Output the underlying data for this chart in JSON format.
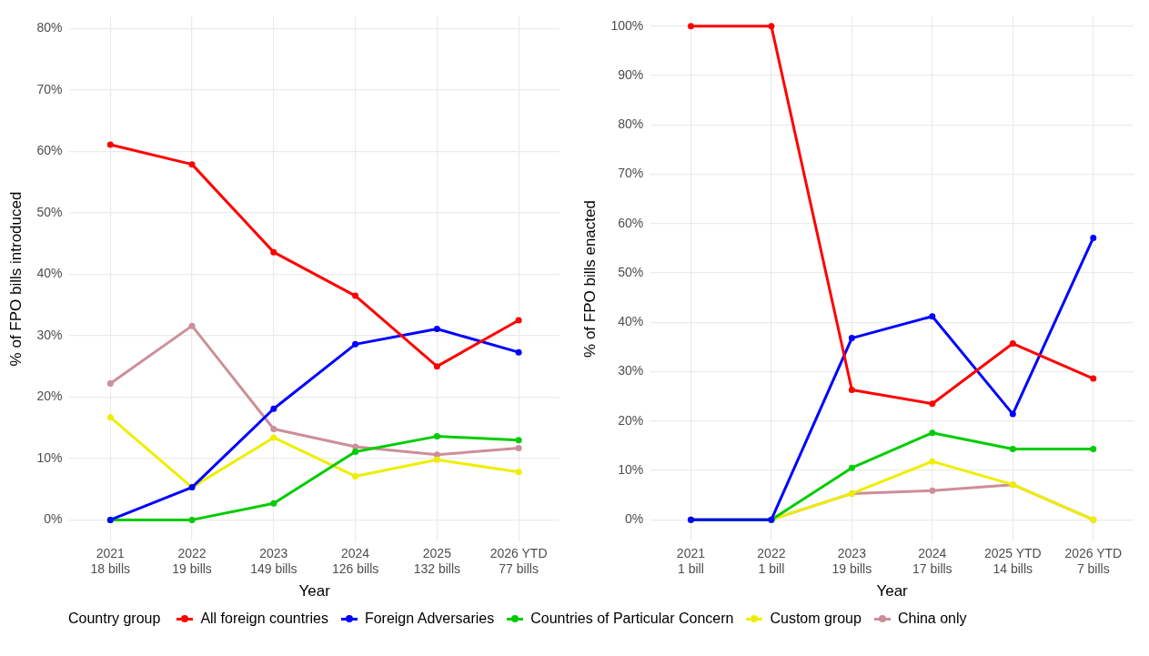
{
  "chart_data": [
    {
      "type": "line",
      "xlabel": "Year",
      "ylabel": "% of FPO bills introduced",
      "legend": "bottom",
      "legend_title": "Country group",
      "grid": true,
      "marker": "circle",
      "categories": [
        "2021\n18 bills",
        "2022\n19 bills",
        "2023\n149 bills",
        "2024\n126 bills",
        "2025\n132 bills",
        "2026 YTD\n77 bills"
      ],
      "ylim": [
        -3.5,
        82
      ],
      "yticks": [
        {
          "value": 0,
          "label": "0%"
        },
        {
          "value": 10,
          "label": "10%"
        },
        {
          "value": 20,
          "label": "20%"
        },
        {
          "value": 30,
          "label": "30%"
        },
        {
          "value": 40,
          "label": "40%"
        },
        {
          "value": 50,
          "label": "50%"
        },
        {
          "value": 60,
          "label": "60%"
        },
        {
          "value": 70,
          "label": "70%"
        },
        {
          "value": 80,
          "label": "80%"
        }
      ],
      "series": [
        {
          "name": "All foreign countries",
          "color": "#ff0000",
          "values": [
            61.1,
            57.9,
            43.6,
            36.5,
            25.0,
            32.5
          ]
        },
        {
          "name": "Foreign Adversaries",
          "color": "#0000ff",
          "values": [
            0,
            5.3,
            18.1,
            28.6,
            31.1,
            27.3
          ]
        },
        {
          "name": "Countries of Particular Concern",
          "color": "#00cc00",
          "values": [
            0,
            0,
            2.7,
            11.1,
            13.6,
            13.0
          ]
        },
        {
          "name": "Custom group",
          "color": "#eeee00",
          "values": [
            16.7,
            5.3,
            13.4,
            7.1,
            9.8,
            7.8
          ]
        },
        {
          "name": "China only",
          "color": "#cc8f99",
          "values": [
            22.2,
            31.6,
            14.8,
            11.9,
            10.6,
            11.7
          ]
        }
      ]
    },
    {
      "type": "line",
      "xlabel": "Year",
      "ylabel": "% of FPO bills enacted",
      "grid": true,
      "marker": "circle",
      "categories": [
        "2021\n1 bill",
        "2022\n1 bill",
        "2023\n19 bills",
        "2024\n17 bills",
        "2025 YTD\n14 bills",
        "2026 YTD\n7 bills"
      ],
      "ylim": [
        -4.4,
        102
      ],
      "yticks": [
        {
          "value": 0,
          "label": "0%"
        },
        {
          "value": 10,
          "label": "10%"
        },
        {
          "value": 20,
          "label": "20%"
        },
        {
          "value": 30,
          "label": "30%"
        },
        {
          "value": 40,
          "label": "40%"
        },
        {
          "value": 50,
          "label": "50%"
        },
        {
          "value": 60,
          "label": "60%"
        },
        {
          "value": 70,
          "label": "70%"
        },
        {
          "value": 80,
          "label": "80%"
        },
        {
          "value": 90,
          "label": "90%"
        },
        {
          "value": 100,
          "label": "100%"
        }
      ],
      "series": [
        {
          "name": "All foreign countries",
          "color": "#ff0000",
          "values": [
            100,
            100,
            26.3,
            23.5,
            35.7,
            28.6
          ]
        },
        {
          "name": "Foreign Adversaries",
          "color": "#0000ff",
          "values": [
            0,
            0,
            36.8,
            41.2,
            21.4,
            57.1
          ]
        },
        {
          "name": "Countries of Particular Concern",
          "color": "#00cc00",
          "values": [
            0,
            0,
            10.5,
            17.6,
            14.3,
            14.3
          ]
        },
        {
          "name": "Custom group",
          "color": "#eeee00",
          "values": [
            0,
            0,
            5.3,
            11.8,
            7.1,
            0
          ]
        },
        {
          "name": "China only",
          "color": "#cc8f99",
          "values": [
            0,
            0,
            5.3,
            5.9,
            7.1,
            0
          ]
        }
      ]
    }
  ]
}
